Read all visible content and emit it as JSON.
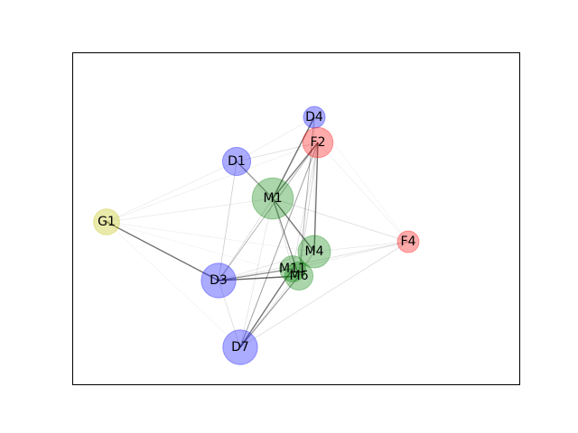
{
  "colors": {
    "D": "#0000ff",
    "M": "#008000",
    "F": "#ff0000",
    "G": "#bfbf00",
    "edge": "#000000",
    "frame": "#000000",
    "background": "#ffffff"
  },
  "nodes": [
    {
      "id": "D4",
      "label": "D4",
      "group": "D",
      "size": 1.0
    },
    {
      "id": "F2",
      "label": "F2",
      "group": "F",
      "size": 1.4
    },
    {
      "id": "D1",
      "label": "D1",
      "group": "D",
      "size": 1.3
    },
    {
      "id": "M1",
      "label": "M1",
      "group": "M",
      "size": 1.9
    },
    {
      "id": "G1",
      "label": "G1",
      "group": "G",
      "size": 1.2
    },
    {
      "id": "M4",
      "label": "M4",
      "group": "M",
      "size": 1.5
    },
    {
      "id": "F4",
      "label": "F4",
      "group": "F",
      "size": 1.0
    },
    {
      "id": "M11",
      "label": "M11",
      "group": "M",
      "size": 1.2
    },
    {
      "id": "M6",
      "label": "M6",
      "group": "M",
      "size": 1.3
    },
    {
      "id": "D3",
      "label": "D3",
      "group": "D",
      "size": 1.6
    },
    {
      "id": "D7",
      "label": "D7",
      "group": "D",
      "size": 1.6
    }
  ],
  "edges": [
    {
      "source": "D4",
      "target": "M1",
      "weight": 0.55
    },
    {
      "source": "F2",
      "target": "M1",
      "weight": 0.55
    },
    {
      "source": "D1",
      "target": "M1",
      "weight": 0.45
    },
    {
      "source": "M1",
      "target": "M4",
      "weight": 0.55
    },
    {
      "source": "M1",
      "target": "M6",
      "weight": 0.45
    },
    {
      "source": "F2",
      "target": "M4",
      "weight": 0.55
    },
    {
      "source": "G1",
      "target": "D3",
      "weight": 0.55
    },
    {
      "source": "D3",
      "target": "M6",
      "weight": 0.6
    },
    {
      "source": "D3",
      "target": "M11",
      "weight": 0.45
    },
    {
      "source": "D7",
      "target": "M11",
      "weight": 0.55
    },
    {
      "source": "D7",
      "target": "F2",
      "weight": 0.35
    },
    {
      "source": "D7",
      "target": "M6",
      "weight": 0.4
    },
    {
      "source": "D4",
      "target": "M6",
      "weight": 0.3
    },
    {
      "source": "F2",
      "target": "D3",
      "weight": 0.3
    },
    {
      "source": "D1",
      "target": "D3",
      "weight": 0.2
    },
    {
      "source": "D1",
      "target": "F2",
      "weight": 0.15
    },
    {
      "source": "D1",
      "target": "G1",
      "weight": 0.1
    },
    {
      "source": "D1",
      "target": "D4",
      "weight": 0.1
    },
    {
      "source": "G1",
      "target": "M1",
      "weight": 0.1
    },
    {
      "source": "G1",
      "target": "F2",
      "weight": 0.08
    },
    {
      "source": "G1",
      "target": "M4",
      "weight": 0.08
    },
    {
      "source": "G1",
      "target": "M6",
      "weight": 0.06
    },
    {
      "source": "G1",
      "target": "D7",
      "weight": 0.06
    },
    {
      "source": "F4",
      "target": "M1",
      "weight": 0.15
    },
    {
      "source": "F4",
      "target": "M4",
      "weight": 0.1
    },
    {
      "source": "F4",
      "target": "D3",
      "weight": 0.15
    },
    {
      "source": "F4",
      "target": "D7",
      "weight": 0.15
    },
    {
      "source": "F4",
      "target": "F2",
      "weight": 0.08
    },
    {
      "source": "F4",
      "target": "D4",
      "weight": 0.06
    },
    {
      "source": "F4",
      "target": "M11",
      "weight": 0.1
    },
    {
      "source": "D3",
      "target": "M1",
      "weight": 0.15
    },
    {
      "source": "D3",
      "target": "M4",
      "weight": 0.12
    },
    {
      "source": "D3",
      "target": "D7",
      "weight": 0.15
    },
    {
      "source": "D7",
      "target": "M1",
      "weight": 0.12
    },
    {
      "source": "D7",
      "target": "M4",
      "weight": 0.12
    },
    {
      "source": "M11",
      "target": "M1",
      "weight": 0.15
    },
    {
      "source": "M11",
      "target": "F2",
      "weight": 0.15
    },
    {
      "source": "M6",
      "target": "F2",
      "weight": 0.2
    },
    {
      "source": "M4",
      "target": "M6",
      "weight": 0.2
    },
    {
      "source": "D1",
      "target": "M4",
      "weight": 0.08
    },
    {
      "source": "D4",
      "target": "M4",
      "weight": 0.1
    }
  ]
}
